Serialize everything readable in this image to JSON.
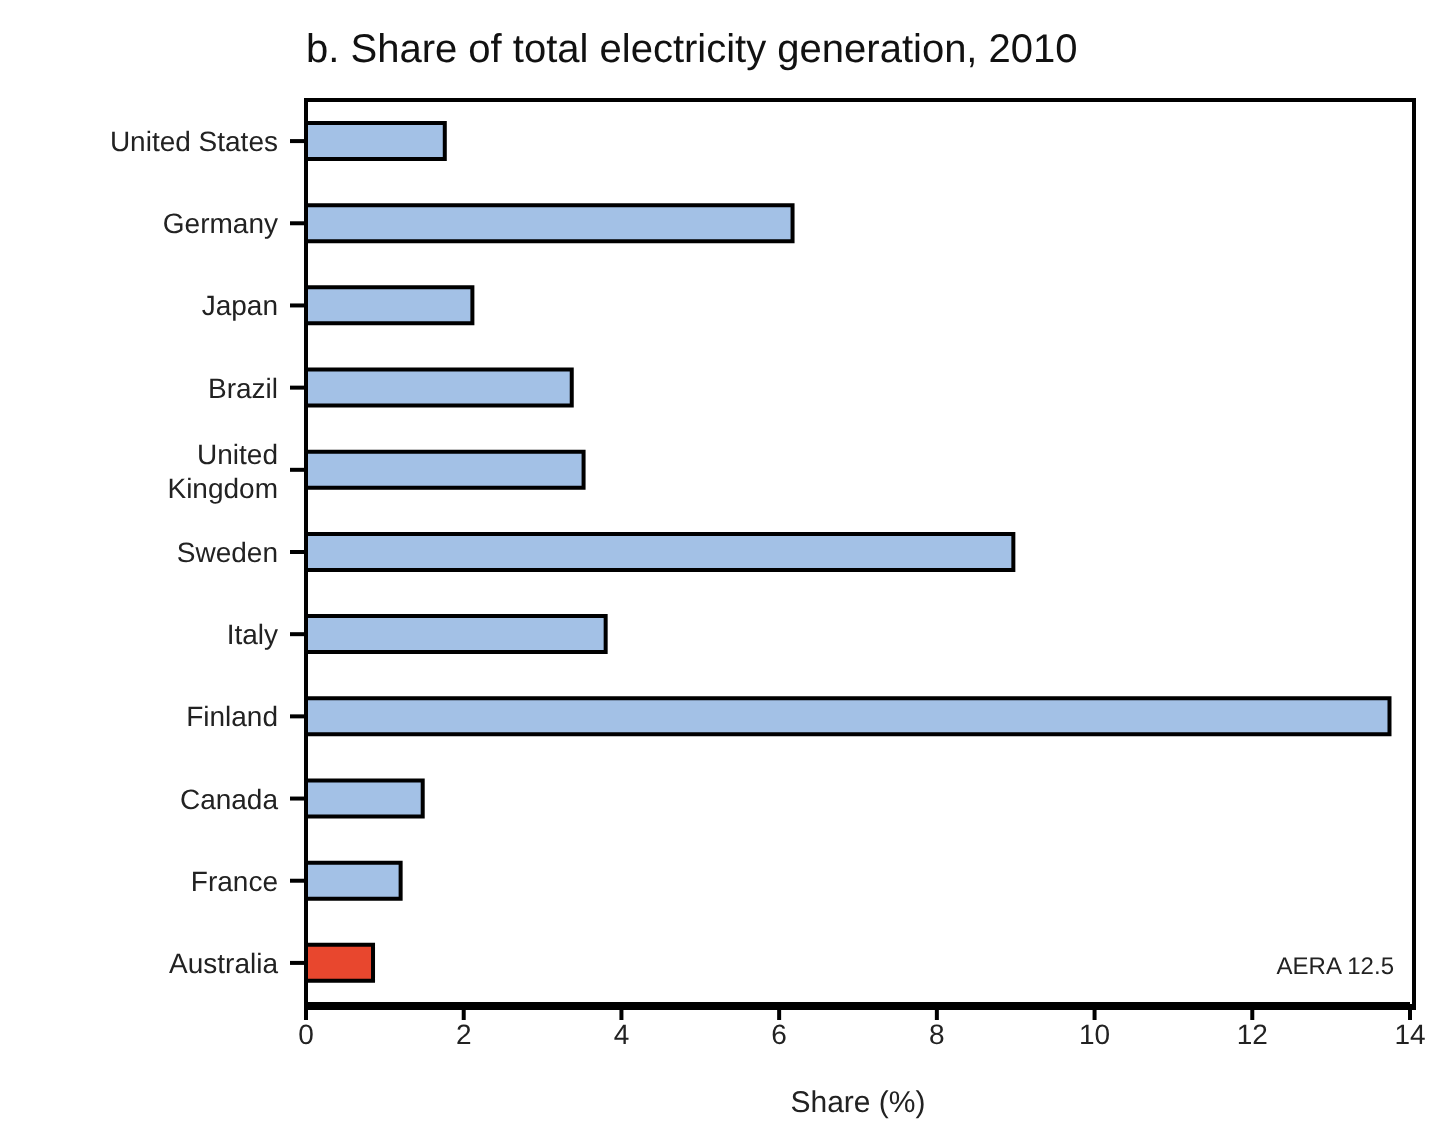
{
  "chart_data": {
    "type": "bar",
    "orientation": "horizontal",
    "title": "b. Share of total electricity generation, 2010",
    "xlabel": "Share (%)",
    "categories": [
      "United States",
      "Germany",
      "Japan",
      "Brazil",
      "United Kingdom",
      "Sweden",
      "Italy",
      "Finland",
      "Canada",
      "France",
      "Australia"
    ],
    "values": [
      1.76,
      6.17,
      2.11,
      3.37,
      3.52,
      8.97,
      3.8,
      13.74,
      1.48,
      1.2,
      0.85
    ],
    "colors": [
      "#a3c1e6",
      "#a3c1e6",
      "#a3c1e6",
      "#a3c1e6",
      "#a3c1e6",
      "#a3c1e6",
      "#a3c1e6",
      "#a3c1e6",
      "#a3c1e6",
      "#a3c1e6",
      "#e8472e"
    ],
    "xlim": [
      0,
      14
    ],
    "xticks": [
      0,
      2,
      4,
      6,
      8,
      10,
      12,
      14
    ],
    "grid": false,
    "legend": false,
    "annotations": [
      "AERA 12.5"
    ]
  }
}
